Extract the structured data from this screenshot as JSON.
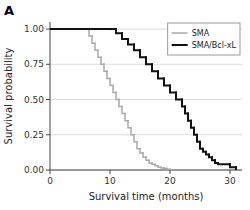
{
  "chart_data": {
    "type": "step",
    "title": "A",
    "x_label": "Survival time (months)",
    "y_label": "Survival probability",
    "xlim": [
      0,
      32
    ],
    "ylim": [
      0,
      1.05
    ],
    "xticks": [
      0,
      10,
      20,
      30
    ],
    "yticks": [
      {
        "value": 0,
        "label": "0.00"
      },
      0.25,
      {
        "value": 0.5,
        "label": "0.50"
      },
      0.75,
      {
        "value": 1,
        "label": "1.00"
      }
    ],
    "grid": "y",
    "legend": "upper right",
    "series": [
      {
        "name": "SMA",
        "color": "#aaaaaa",
        "x": [
          0,
          6.0,
          6.5,
          7.0,
          7.5,
          8.0,
          8.5,
          9.0,
          9.5,
          10.0,
          10.5,
          11.0,
          11.5,
          12.0,
          12.5,
          13.0,
          13.5,
          14.0,
          14.5,
          15.0,
          15.5,
          16.0,
          16.5,
          17.0,
          17.5,
          18.0,
          18.5,
          19.0,
          19.5,
          20.0,
          20.5
        ],
        "values": [
          1,
          1.0,
          0.95,
          0.9,
          0.85,
          0.8,
          0.75,
          0.7,
          0.65,
          0.6,
          0.55,
          0.5,
          0.45,
          0.4,
          0.35,
          0.3,
          0.25,
          0.2,
          0.15,
          0.12,
          0.09,
          0.07,
          0.05,
          0.04,
          0.03,
          0.02,
          0.015,
          0.01,
          0.005,
          0.002,
          0.0
        ]
      },
      {
        "name": "SMA/Bcl-xL",
        "color": "#111111",
        "x": [
          0,
          10.0,
          11.0,
          12.0,
          13.0,
          14.0,
          15.0,
          16.0,
          17.0,
          18.0,
          19.0,
          20.0,
          21.0,
          22.0,
          22.5,
          23.0,
          23.5,
          24.0,
          24.5,
          25.0,
          25.5,
          26.0,
          26.5,
          27.0,
          27.5,
          28.0,
          30.0,
          31.0
        ],
        "values": [
          1,
          1.0,
          0.97,
          0.93,
          0.89,
          0.85,
          0.8,
          0.75,
          0.7,
          0.65,
          0.6,
          0.55,
          0.5,
          0.45,
          0.4,
          0.35,
          0.3,
          0.25,
          0.2,
          0.15,
          0.13,
          0.11,
          0.09,
          0.07,
          0.05,
          0.04,
          0.02,
          0.0
        ]
      }
    ]
  }
}
